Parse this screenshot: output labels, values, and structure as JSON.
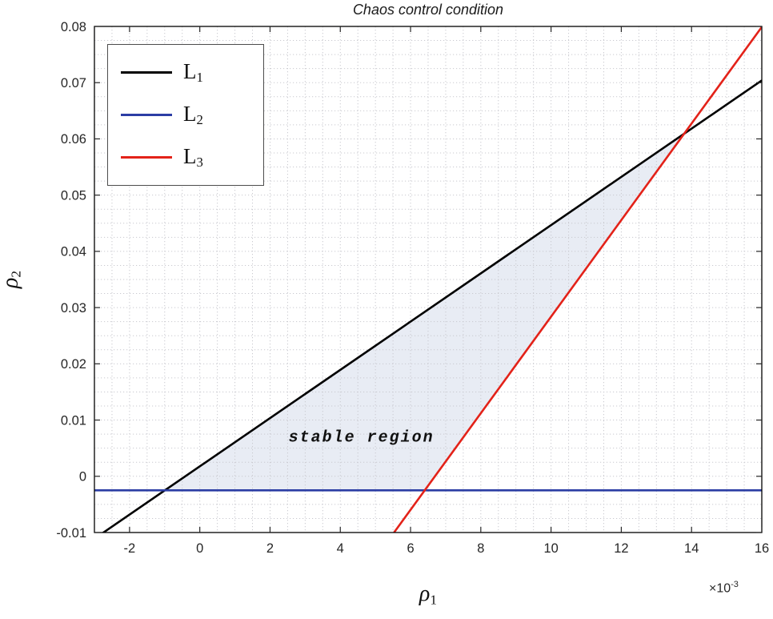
{
  "figure": {
    "title": "Chaos control condition",
    "annotation": "stable region",
    "xlabel_base": "ρ",
    "xlabel_sub": "1",
    "ylabel_base": "ρ",
    "ylabel_sub": "2",
    "x_exponent_base": "×10",
    "x_exponent_sup": "-3"
  },
  "legend": {
    "items": [
      {
        "base": "L",
        "sub": "1",
        "color": "#000000"
      },
      {
        "base": "L",
        "sub": "2",
        "color": "#2b3da4"
      },
      {
        "base": "L",
        "sub": "3",
        "color": "#e32219"
      }
    ]
  },
  "chart_data": {
    "type": "line",
    "title": "Chaos control condition",
    "xlabel": "rho_1 (units of 10^-3)",
    "ylabel": "rho_2",
    "xlim": [
      -3,
      16
    ],
    "ylim": [
      -0.01,
      0.08
    ],
    "xticks": [
      -2,
      0,
      2,
      4,
      6,
      8,
      10,
      12,
      14,
      16
    ],
    "xtick_labels": [
      "-2",
      "0",
      "2",
      "4",
      "6",
      "8",
      "10",
      "12",
      "14",
      "16"
    ],
    "yticks": [
      -0.01,
      0,
      0.01,
      0.02,
      0.03,
      0.04,
      0.05,
      0.06,
      0.07,
      0.08
    ],
    "ytick_labels": [
      "-0.01",
      "0",
      "0.01",
      "0.02",
      "0.03",
      "0.04",
      "0.05",
      "0.06",
      "0.07",
      "0.08"
    ],
    "grid": {
      "x_step": 0.5,
      "y_step": 0.0025,
      "color": "#c9c9cf",
      "style": "dotted"
    },
    "legend_position": "northwest",
    "series": [
      {
        "name": "L1",
        "color": "#000000",
        "width": 2.6,
        "points": [
          [
            -3,
            -0.0111
          ],
          [
            16,
            0.0704
          ]
        ]
      },
      {
        "name": "L2",
        "color": "#2b3da4",
        "width": 2.6,
        "points": [
          [
            -3,
            -0.0025
          ],
          [
            16,
            -0.0025
          ]
        ]
      },
      {
        "name": "L3",
        "color": "#e32219",
        "width": 2.6,
        "points": [
          [
            5.53,
            -0.01
          ],
          [
            16,
            0.0799
          ]
        ]
      }
    ],
    "stable_region": {
      "label": "stable region",
      "fill": "#e8ecf4",
      "vertices": [
        [
          -1.02,
          -0.0025
        ],
        [
          6.42,
          -0.0025
        ],
        [
          13.82,
          0.0611
        ]
      ],
      "label_pos": [
        4.6,
        0.0068
      ]
    }
  }
}
